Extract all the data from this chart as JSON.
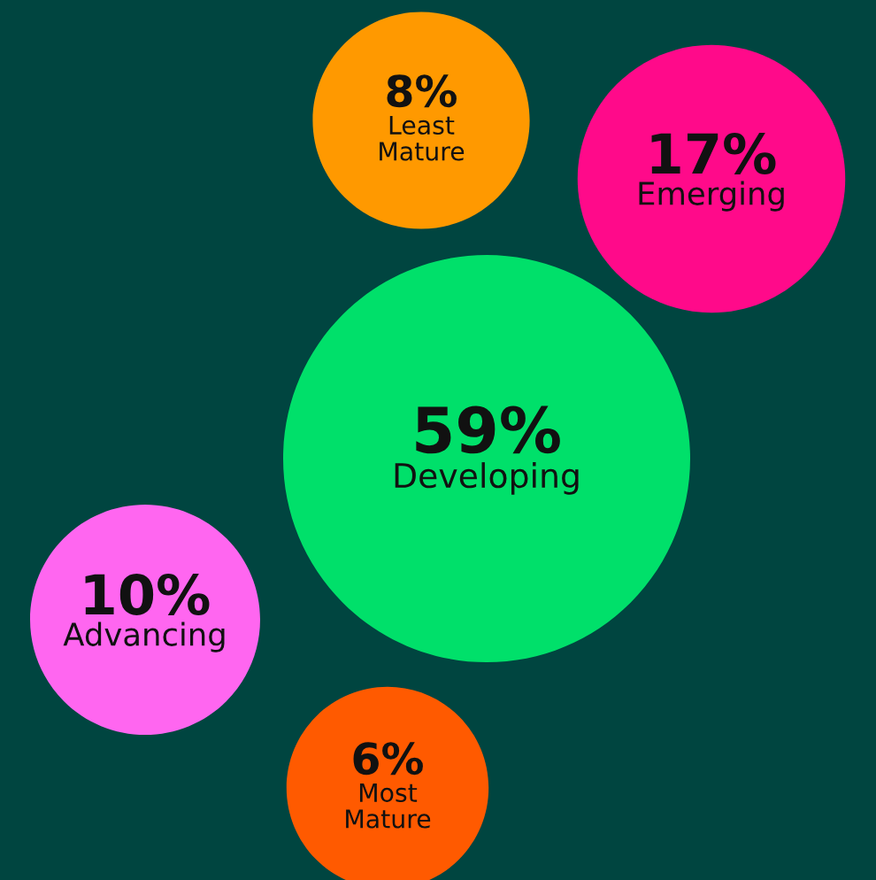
{
  "chart_data": {
    "type": "other",
    "categories": [
      "Least Mature",
      "Emerging",
      "Developing",
      "Advancing",
      "Most Mature"
    ],
    "values": [
      8,
      17,
      59,
      10,
      6
    ],
    "value_labels": [
      "8%",
      "17%",
      "59%",
      "10%",
      "6%"
    ],
    "colors": [
      "#ff9900",
      "#ff0a8a",
      "#00e06a",
      "#ff66f0",
      "#ff5a00"
    ]
  }
}
